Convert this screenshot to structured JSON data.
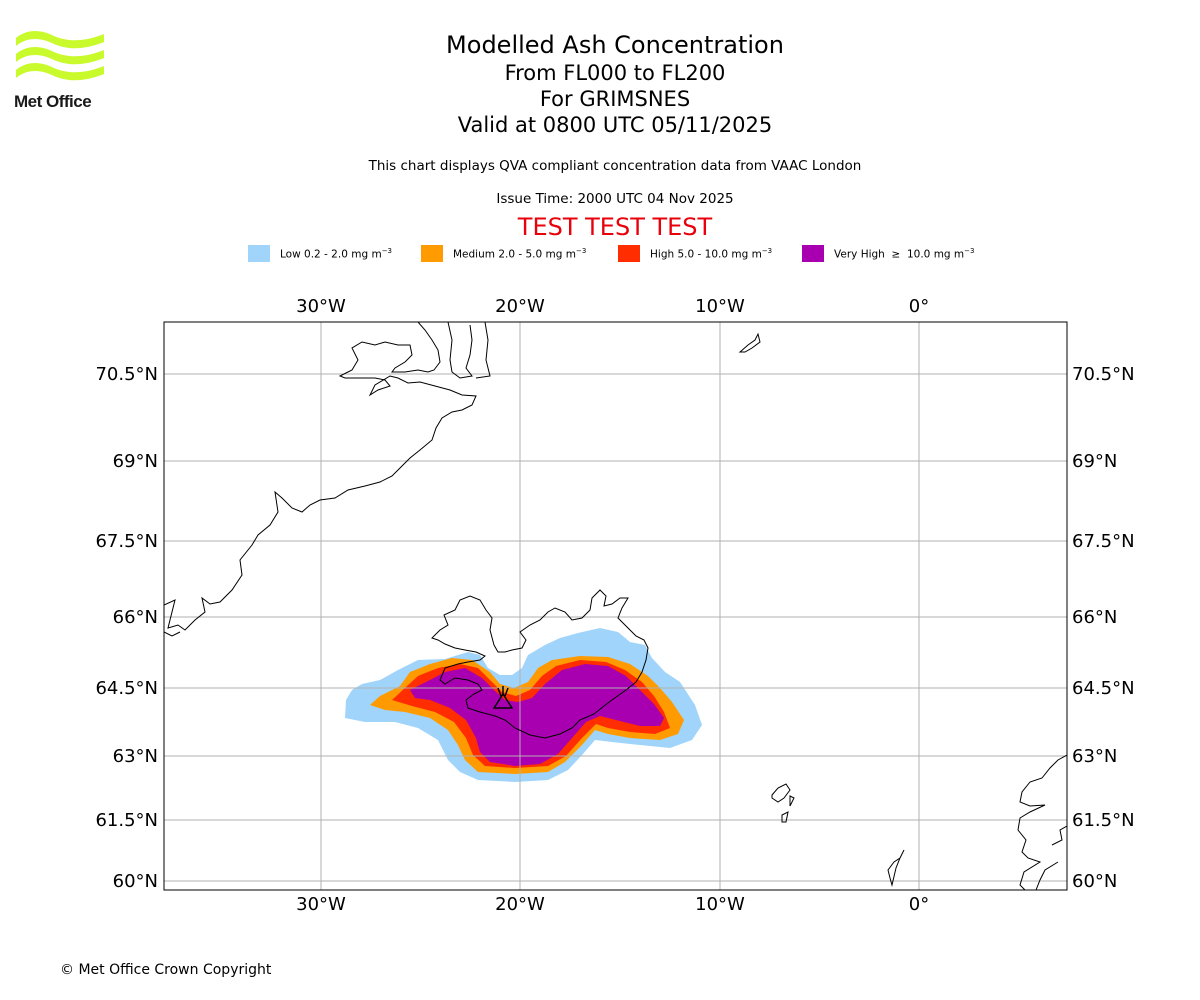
{
  "logo": {
    "text": "Met Office",
    "icon": "met-office-wave-logo-icon",
    "color": "#c8fa2c"
  },
  "header": {
    "title": "Modelled Ash Concentration",
    "flight_levels": "From FL000 to FL200",
    "volcano": "For GRIMSNES",
    "valid_time": "Valid at 0800 UTC 05/11/2025",
    "description": "This chart displays QVA compliant concentration data from VAAC London",
    "issue_time": "Issue Time: 2000 UTC 04 Nov 2025",
    "test_banner": "TEST TEST TEST"
  },
  "legend": [
    {
      "label": "Low 0.2 - 2.0 mg m",
      "unit_exp": "−3",
      "color": "#a0d4fb"
    },
    {
      "label": "Medium 2.0 - 5.0 mg m",
      "unit_exp": "−3",
      "color": "#ff9a00"
    },
    {
      "label": "High 5.0 - 10.0 mg m",
      "unit_exp": "−3",
      "color": "#ff2d00"
    },
    {
      "label": "Very High  ≥  10.0 mg m",
      "unit_exp": "−3",
      "color": "#a800b0"
    }
  ],
  "map": {
    "lon_labels": [
      "30°W",
      "20°W",
      "10°W",
      "0°"
    ],
    "lat_labels": [
      "70.5°N",
      "69°N",
      "67.5°N",
      "66°N",
      "64.5°N",
      "63°N",
      "61.5°N",
      "60°N"
    ],
    "volcano_marker": "volcano-icon"
  },
  "footer": {
    "copyright": "© Met Office Crown Copyright"
  }
}
